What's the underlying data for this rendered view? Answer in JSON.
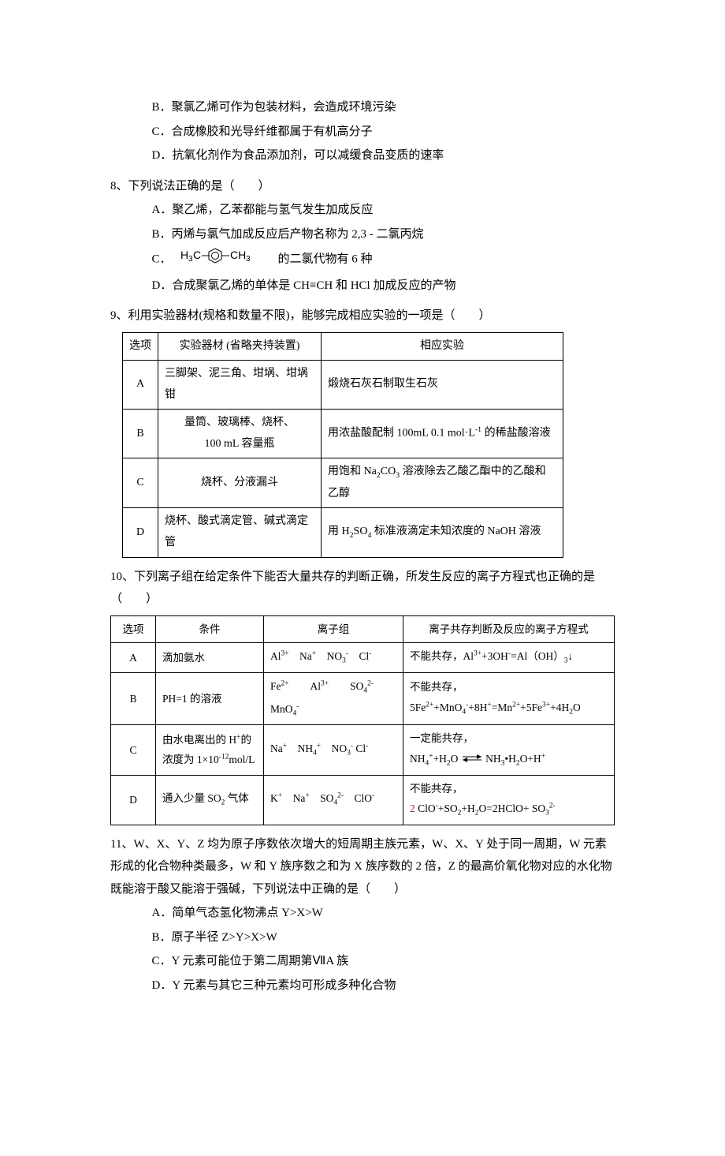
{
  "q7_continued": {
    "options": [
      "B．聚氯乙烯可作为包装材料，会造成环境污染",
      "C．合成橡胶和光导纤维都属于有机高分子",
      "D．抗氧化剂作为食品添加剂，可以减缓食品变质的速率"
    ]
  },
  "q8": {
    "stem": "8、下列说法正确的是（　　）",
    "options": {
      "A": "A．聚乙烯，乙苯都能与氢气发生加成反应",
      "B": "B．丙烯与氯气加成反应后产物名称为 2,3 - 二氯丙烷",
      "C_pre": "C．　",
      "C_post": " 的二氯代物有 6 种",
      "D": "D．合成聚氯乙烯的单体是 CH≡CH 和 HCl 加成反应的产物"
    }
  },
  "q9": {
    "stem": "9、利用实验器材(规格和数量不限)，能够完成相应实验的一项是（　　）",
    "table": {
      "headers": [
        "选项",
        "实验器材 (省略夹持装置)",
        "相应实验"
      ],
      "rows": [
        [
          "A",
          "三脚架、泥三角、坩埚、坩埚钳",
          "煅烧石灰石制取生石灰"
        ],
        [
          "B",
          "量筒、玻璃棒、烧杯、\n100 mL 容量瓶",
          "用浓盐酸配制 100mL 0.1 mol·L⁻¹ 的稀盐酸溶液"
        ],
        [
          "C",
          "烧杯、分液漏斗",
          "用饱和 Na₂CO₃ 溶液除去乙酸乙酯中的乙酸和乙醇"
        ],
        [
          "D",
          "烧杯、酸式滴定管、碱式滴定管",
          "用 H₂SO₄ 标准液滴定未知浓度的 NaOH 溶液"
        ]
      ]
    }
  },
  "q10": {
    "stem": "10、下列离子组在给定条件下能否大量共存的判断正确，所发生反应的离子方程式也正确的是（　　）",
    "table": {
      "headers": [
        "选项",
        "条件",
        "离子组",
        "离子共存判断及反应的离子方程式"
      ],
      "rows": [
        {
          "opt": "A",
          "cond": "滴加氨水",
          "ions_html": "Al<sup>3+</sup>　Na<sup>+</sup>　NO<sub>3</sub><sup>-</sup>　Cl<sup>-</sup>",
          "judge_html": "不能共存，Al<sup>3+</sup>+3OH<sup>-</sup>=Al（OH）<sub>3</sub>↓"
        },
        {
          "opt": "B",
          "cond": "PH=1 的溶液",
          "ions_html": "Fe<sup>2+</sup>　　Al<sup>3+</sup>　　SO<sub>4</sub><sup>2-</sup>　MnO<sub>4</sub><sup>-</sup>",
          "judge_html": "不能共存，\n5Fe<sup>2+</sup>+MnO<sub>4</sub><sup>-</sup>+8H<sup>+</sup>=Mn<sup>2+</sup>+5Fe<sup>3+</sup>+4H<sub>2</sub>O"
        },
        {
          "opt": "C",
          "cond": "由水电离出的 H<sup>+</sup>的浓度为 1×10<sup>-12</sup>mol/L",
          "ions_html": "Na<sup>+</sup>　NH<sub>4</sub><sup>+</sup>　NO<sub>3</sub><sup>-</sup> Cl<sup>-</sup>",
          "judge_html": "一定能共存，\nNH<sub>4</sub><sup>+</sup>+H<sub>2</sub>O <span class=\"eq-arrow\"><svg width=\"28\" height=\"12\"><line x1=\"2\" y1=\"4\" x2=\"26\" y2=\"4\" stroke=\"#000\" stroke-width=\"1\"/><polygon points=\"26,4 20,1 20,7\" fill=\"#000\"/><line x1=\"26\" y1=\"8\" x2=\"2\" y2=\"8\" stroke=\"#000\" stroke-width=\"1\"/><polygon points=\"2,8 8,5 8,11\" fill=\"#000\"/></svg></span> NH<sub>3</sub>•H<sub>2</sub>O+H<sup>+</sup>"
        },
        {
          "opt": "D",
          "cond": "通入少量 SO<sub>2</sub> 气体",
          "ions_html": "K<sup>+</sup>　Na<sup>+</sup>　SO<sub>4</sub><sup>2-</sup>　ClO<sup>-</sup>",
          "judge_html": "不能共存，\n<span class=\"red\">2</span> ClO<sup>-</sup>+SO<sub>2</sub>+H<sub>2</sub>O=2HClO+ SO<sub>3</sub><sup>2-</sup>"
        }
      ]
    }
  },
  "q11": {
    "stem": "11、W、X、Y、Z 均为原子序数依次增大的短周期主族元素，W、X、Y 处于同一周期，W 元素形成的化合物种类最多，W 和 Y 族序数之和为 X 族序数的 2 倍，Z 的最高价氧化物对应的水化物既能溶于酸又能溶于强碱，下列说法中正确的是（　　）",
    "options": [
      "A．简单气态氢化物沸点 Y>X>W",
      "B．原子半径 Z>Y>X>W",
      "C．Y 元素可能位于第二周期第ⅦA 族",
      "D．Y 元素与其它三种元素均可形成多种化合物"
    ]
  },
  "colors": {
    "text": "#000000",
    "background": "#ffffff",
    "border": "#000000",
    "highlight": "#ff0000"
  },
  "typography": {
    "base_fontsize": 15,
    "table_fontsize": 14,
    "line_height": 1.9,
    "font_family": "SimSun"
  }
}
